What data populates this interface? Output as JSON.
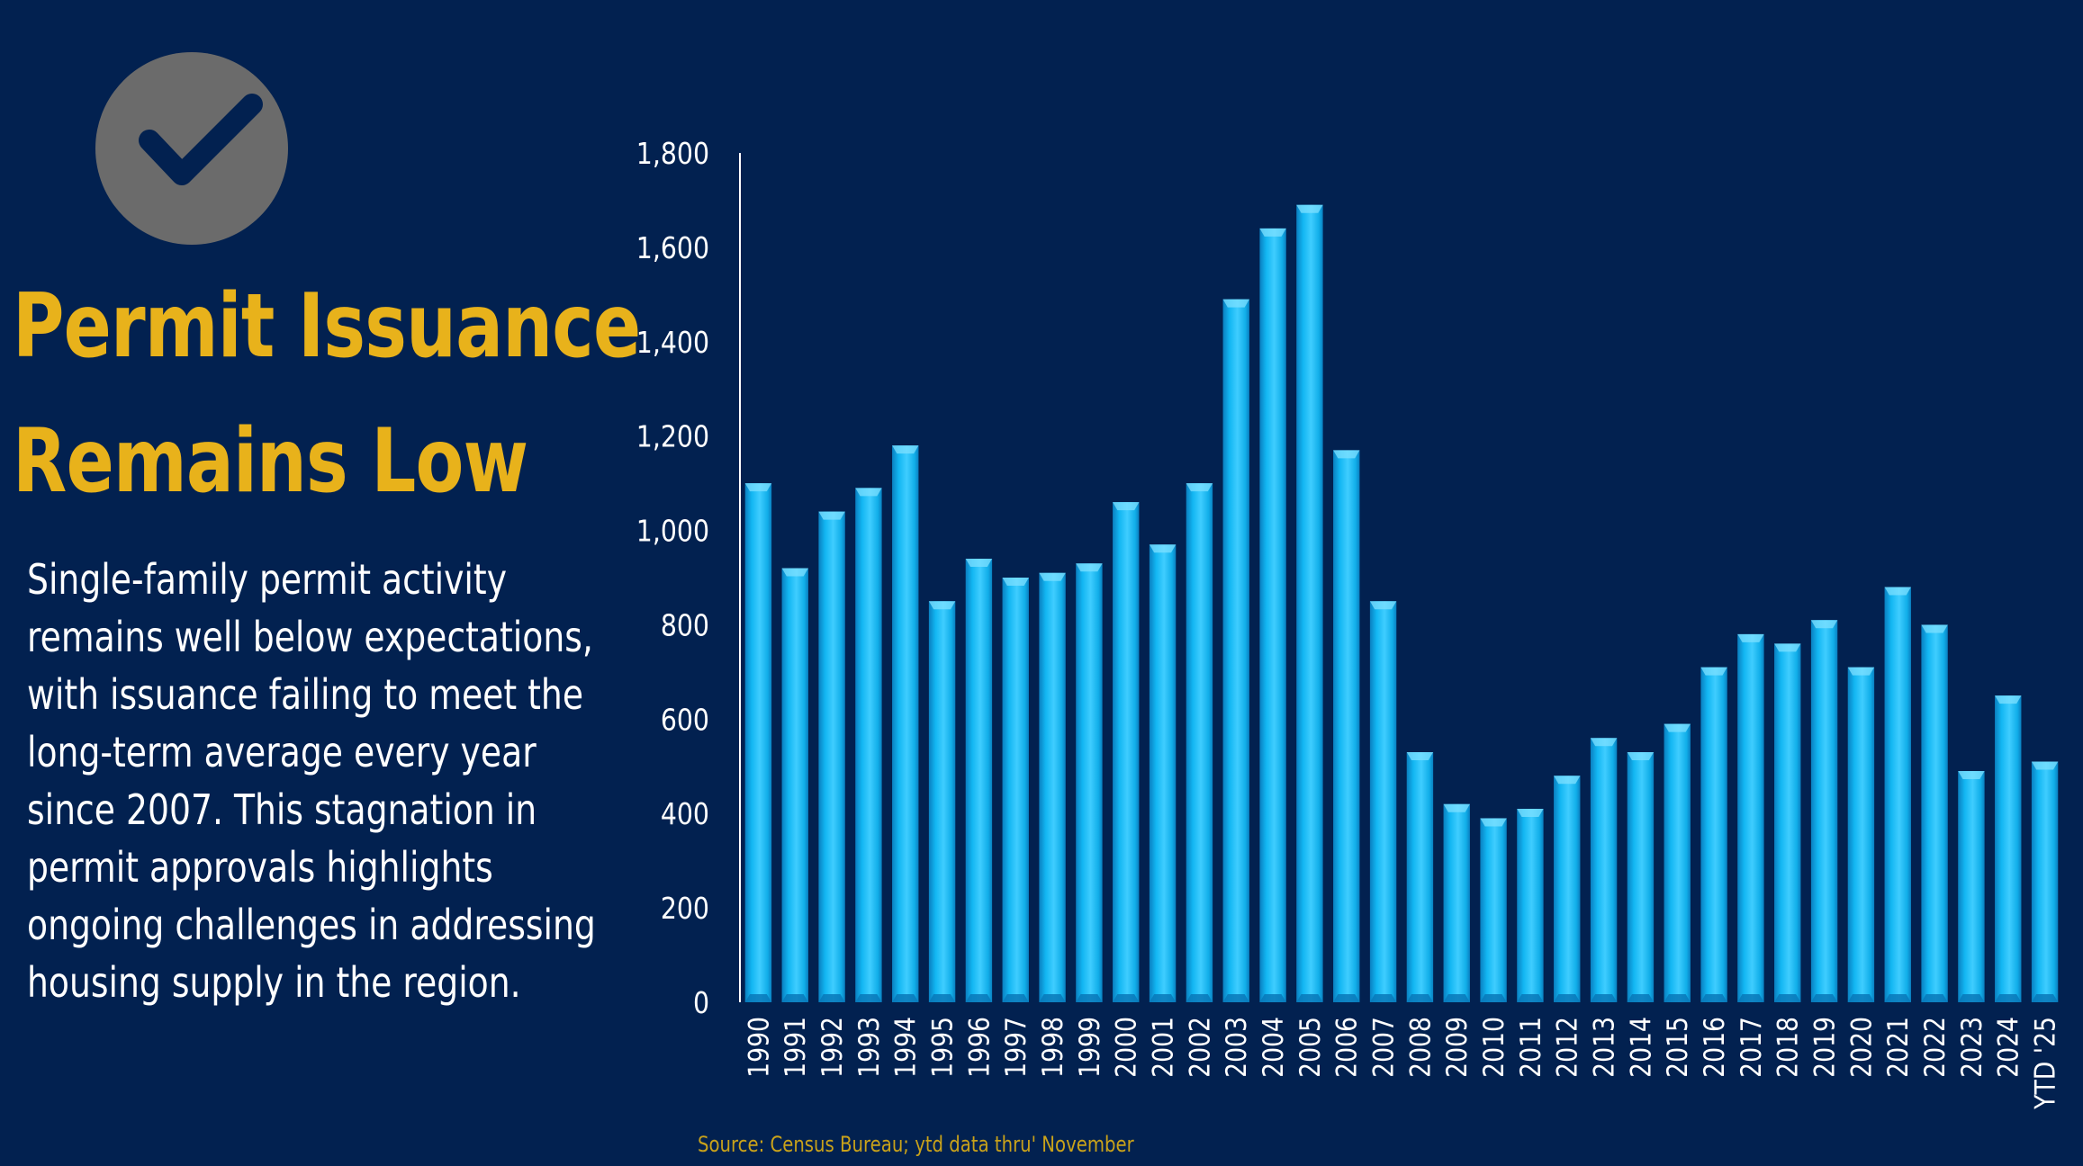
{
  "heading": {
    "line1": "Permit Issuance",
    "line2": "Remains Low"
  },
  "description": {
    "lines": [
      "Single-family permit activity",
      "remains well below expectations,",
      "with issuance failing to meet the",
      "long-term average every year",
      "since 2007. This stagnation in",
      "permit approvals highlights",
      "ongoing challenges in addressing",
      "housing supply in the region."
    ]
  },
  "source_note": "Source: Census Bureau; ytd data thru' November",
  "icon": "checkmark-circle-icon",
  "colors": {
    "background": "#022150",
    "title": "#e8b21b",
    "bar": "#10b4f0",
    "icon_circle": "#6b6b6b",
    "icon_check": "#022150"
  },
  "chart_data": {
    "type": "bar",
    "title": "",
    "xlabel": "",
    "ylabel": "",
    "ylim": [
      0,
      1800
    ],
    "yticks": [
      "0",
      "200",
      "400",
      "600",
      "800",
      "1,000",
      "1,200",
      "1,400",
      "1,600",
      "1,800"
    ],
    "grid": false,
    "categories": [
      "1990",
      "1991",
      "1992",
      "1993",
      "1994",
      "1995",
      "1996",
      "1997",
      "1998",
      "1999",
      "2000",
      "2001",
      "2002",
      "2003",
      "2004",
      "2005",
      "2006",
      "2007",
      "2008",
      "2009",
      "2010",
      "2011",
      "2012",
      "2013",
      "2014",
      "2015",
      "2016",
      "2017",
      "2018",
      "2019",
      "2020",
      "2021",
      "2022",
      "2023",
      "2024",
      "YTD '25"
    ],
    "values": [
      1100,
      920,
      1040,
      1090,
      1180,
      850,
      940,
      900,
      910,
      930,
      1060,
      970,
      1100,
      1490,
      1640,
      1690,
      1170,
      850,
      530,
      420,
      390,
      410,
      480,
      560,
      530,
      590,
      710,
      780,
      760,
      810,
      710,
      880,
      800,
      490,
      650,
      510
    ]
  }
}
